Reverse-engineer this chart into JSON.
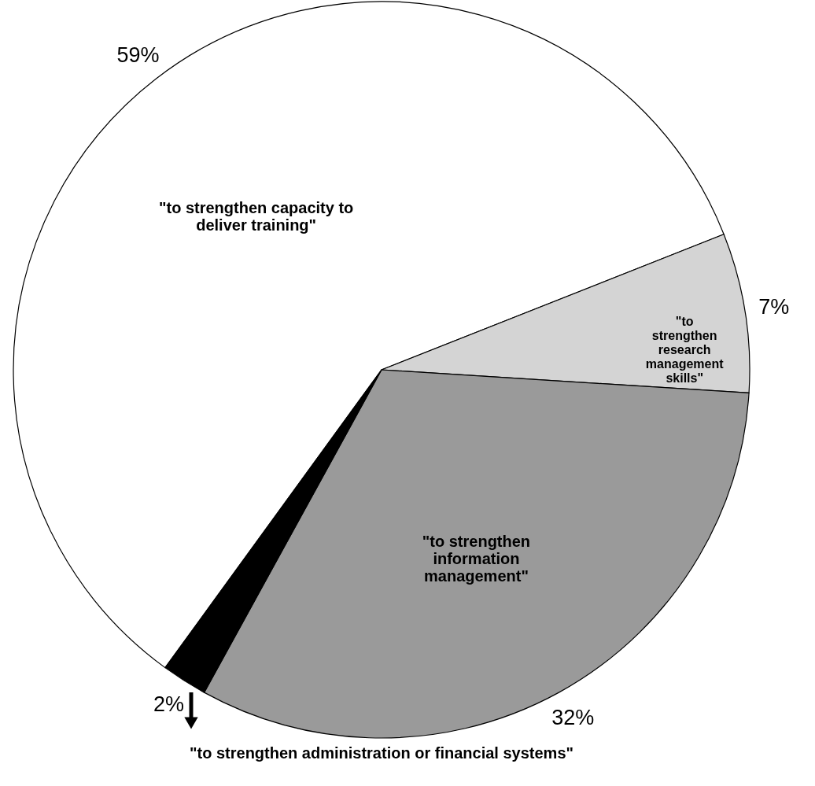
{
  "chart_data": {
    "type": "pie",
    "categories": [
      "\"to strengthen capacity to deliver training\"",
      "\"to strengthen research management skills\"",
      "\"to strengthen information management\"",
      "\"to strengthen administration or financial systems\""
    ],
    "values": [
      59,
      7,
      32,
      2
    ],
    "colors": [
      "#ffffff",
      "#d4d4d4",
      "#9a9a9a",
      "#000000"
    ],
    "value_labels": [
      "59%",
      "7%",
      "32%",
      "2%"
    ]
  }
}
